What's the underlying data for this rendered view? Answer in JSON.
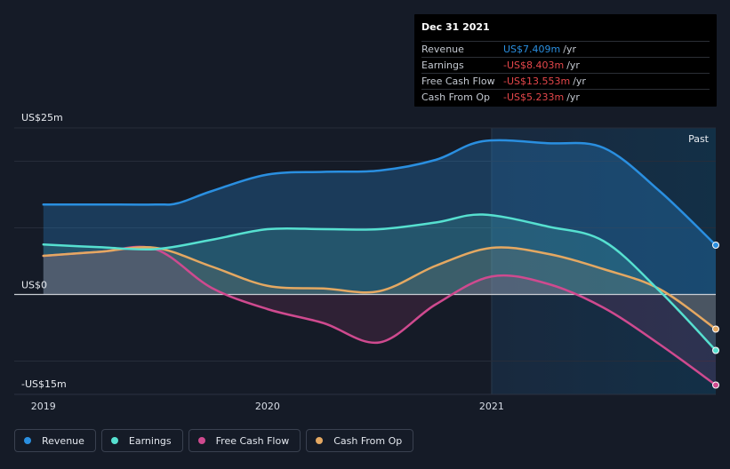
{
  "chart_data": {
    "type": "area",
    "y_axis_labels": {
      "top": "US$25m",
      "zero": "US$0",
      "bottom": "-US$15m"
    },
    "ylim": [
      -15,
      25
    ],
    "x_ticks": [
      {
        "label": "2019",
        "x": 2019.0
      },
      {
        "label": "2020",
        "x": 2020.0
      },
      {
        "label": "2021",
        "x": 2021.0
      }
    ],
    "xlim": [
      2018.87,
      2022.0
    ],
    "past_label": "Past",
    "series": [
      {
        "name": "Revenue",
        "color": "#2a8fe0",
        "points": [
          [
            2019.0,
            13.5
          ],
          [
            2019.25,
            13.5
          ],
          [
            2019.5,
            13.5
          ],
          [
            2019.6,
            13.7
          ],
          [
            2019.75,
            15.5
          ],
          [
            2020.0,
            18.0
          ],
          [
            2020.25,
            18.4
          ],
          [
            2020.5,
            18.6
          ],
          [
            2020.75,
            20.2
          ],
          [
            2020.96,
            23.0
          ],
          [
            2021.25,
            22.7
          ],
          [
            2021.5,
            22.0
          ],
          [
            2021.75,
            15.5
          ],
          [
            2022.0,
            7.4
          ]
        ]
      },
      {
        "name": "Earnings",
        "color": "#56e0d0",
        "points": [
          [
            2019.0,
            7.5
          ],
          [
            2019.25,
            7.1
          ],
          [
            2019.5,
            6.8
          ],
          [
            2019.75,
            8.2
          ],
          [
            2020.0,
            9.8
          ],
          [
            2020.25,
            9.8
          ],
          [
            2020.5,
            9.8
          ],
          [
            2020.75,
            10.8
          ],
          [
            2020.96,
            12.0
          ],
          [
            2021.25,
            10.2
          ],
          [
            2021.5,
            8.0
          ],
          [
            2021.75,
            0.5
          ],
          [
            2022.0,
            -8.4
          ]
        ]
      },
      {
        "name": "Free Cash Flow",
        "color": "#cf4a8f",
        "points": [
          [
            2019.0,
            5.8
          ],
          [
            2019.25,
            6.4
          ],
          [
            2019.5,
            6.8
          ],
          [
            2019.75,
            1.0
          ],
          [
            2020.0,
            -2.2
          ],
          [
            2020.25,
            -4.3
          ],
          [
            2020.5,
            -7.2
          ],
          [
            2020.75,
            -1.5
          ],
          [
            2021.0,
            2.7
          ],
          [
            2021.25,
            1.6
          ],
          [
            2021.5,
            -2.0
          ],
          [
            2021.75,
            -7.5
          ],
          [
            2022.0,
            -13.6
          ]
        ]
      },
      {
        "name": "Cash From Op",
        "color": "#e4a862",
        "points": [
          [
            2019.0,
            5.8
          ],
          [
            2019.25,
            6.4
          ],
          [
            2019.5,
            7.0
          ],
          [
            2019.75,
            4.2
          ],
          [
            2020.0,
            1.3
          ],
          [
            2020.25,
            0.9
          ],
          [
            2020.5,
            0.5
          ],
          [
            2020.75,
            4.3
          ],
          [
            2021.0,
            7.0
          ],
          [
            2021.25,
            6.1
          ],
          [
            2021.5,
            3.8
          ],
          [
            2021.75,
            0.8
          ],
          [
            2022.0,
            -5.2
          ]
        ]
      }
    ]
  },
  "tooltip": {
    "date": "Dec 31 2021",
    "rows": [
      {
        "label": "Revenue",
        "value": "US$7.409m",
        "unit": "/yr",
        "color": "#2a8fe0"
      },
      {
        "label": "Earnings",
        "value": "-US$8.403m",
        "unit": "/yr",
        "color": "#e5474b"
      },
      {
        "label": "Free Cash Flow",
        "value": "-US$13.553m",
        "unit": "/yr",
        "color": "#e5474b"
      },
      {
        "label": "Cash From Op",
        "value": "-US$5.233m",
        "unit": "/yr",
        "color": "#e5474b"
      }
    ]
  },
  "legend": [
    {
      "label": "Revenue",
      "color": "#2a8fe0"
    },
    {
      "label": "Earnings",
      "color": "#56e0d0"
    },
    {
      "label": "Free Cash Flow",
      "color": "#cf4a8f"
    },
    {
      "label": "Cash From Op",
      "color": "#e4a862"
    }
  ]
}
